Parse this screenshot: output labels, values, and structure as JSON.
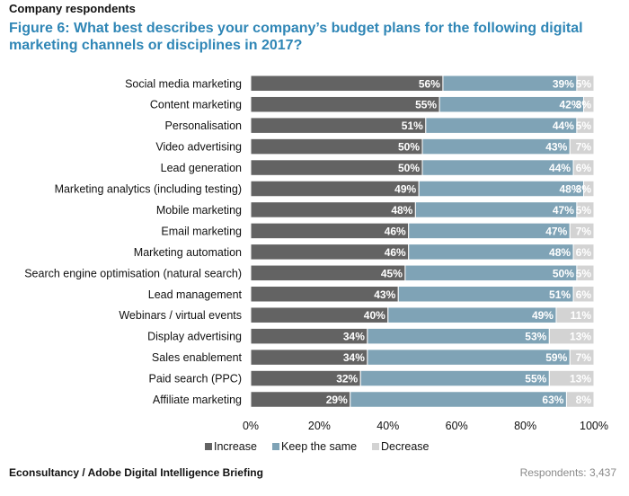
{
  "header": {
    "label": "Company respondents",
    "title": "Figure 6: What best describes your company’s budget plans for the following digital marketing channels or disciplines in 2017?"
  },
  "footer": {
    "source": "Econsultancy / Adobe Digital Intelligence Briefing",
    "respondents_label": "Respondents:",
    "respondents_count": "3,437"
  },
  "colors": {
    "increase": "#636363",
    "keep_the_same": "#7fa3b6",
    "decrease": "#d3d3d3"
  },
  "chart_data": {
    "type": "bar",
    "orientation": "horizontal",
    "stacked": true,
    "categories": [
      "Social media marketing",
      "Content marketing",
      "Personalisation",
      "Video advertising",
      "Lead generation",
      "Marketing analytics (including testing)",
      "Mobile marketing",
      "Email marketing",
      "Marketing automation",
      "Search engine optimisation (natural search)",
      "Lead management",
      "Webinars / virtual events",
      "Display advertising",
      "Sales enablement",
      "Paid search (PPC)",
      "Affiliate marketing"
    ],
    "series": [
      {
        "name": "Increase",
        "values": [
          56,
          55,
          51,
          50,
          50,
          49,
          48,
          46,
          46,
          45,
          43,
          40,
          34,
          34,
          32,
          29
        ]
      },
      {
        "name": "Keep the same",
        "values": [
          39,
          42,
          44,
          43,
          44,
          48,
          47,
          47,
          48,
          50,
          51,
          49,
          53,
          59,
          55,
          63
        ]
      },
      {
        "name": "Decrease",
        "values": [
          5,
          3,
          5,
          7,
          6,
          3,
          5,
          7,
          6,
          5,
          6,
          11,
          13,
          7,
          13,
          8
        ]
      }
    ],
    "xlim": [
      0,
      100
    ],
    "xticks": [
      "0%",
      "20%",
      "40%",
      "60%",
      "80%",
      "100%"
    ],
    "value_suffix": "%",
    "legend": "bottom",
    "grid": false
  }
}
